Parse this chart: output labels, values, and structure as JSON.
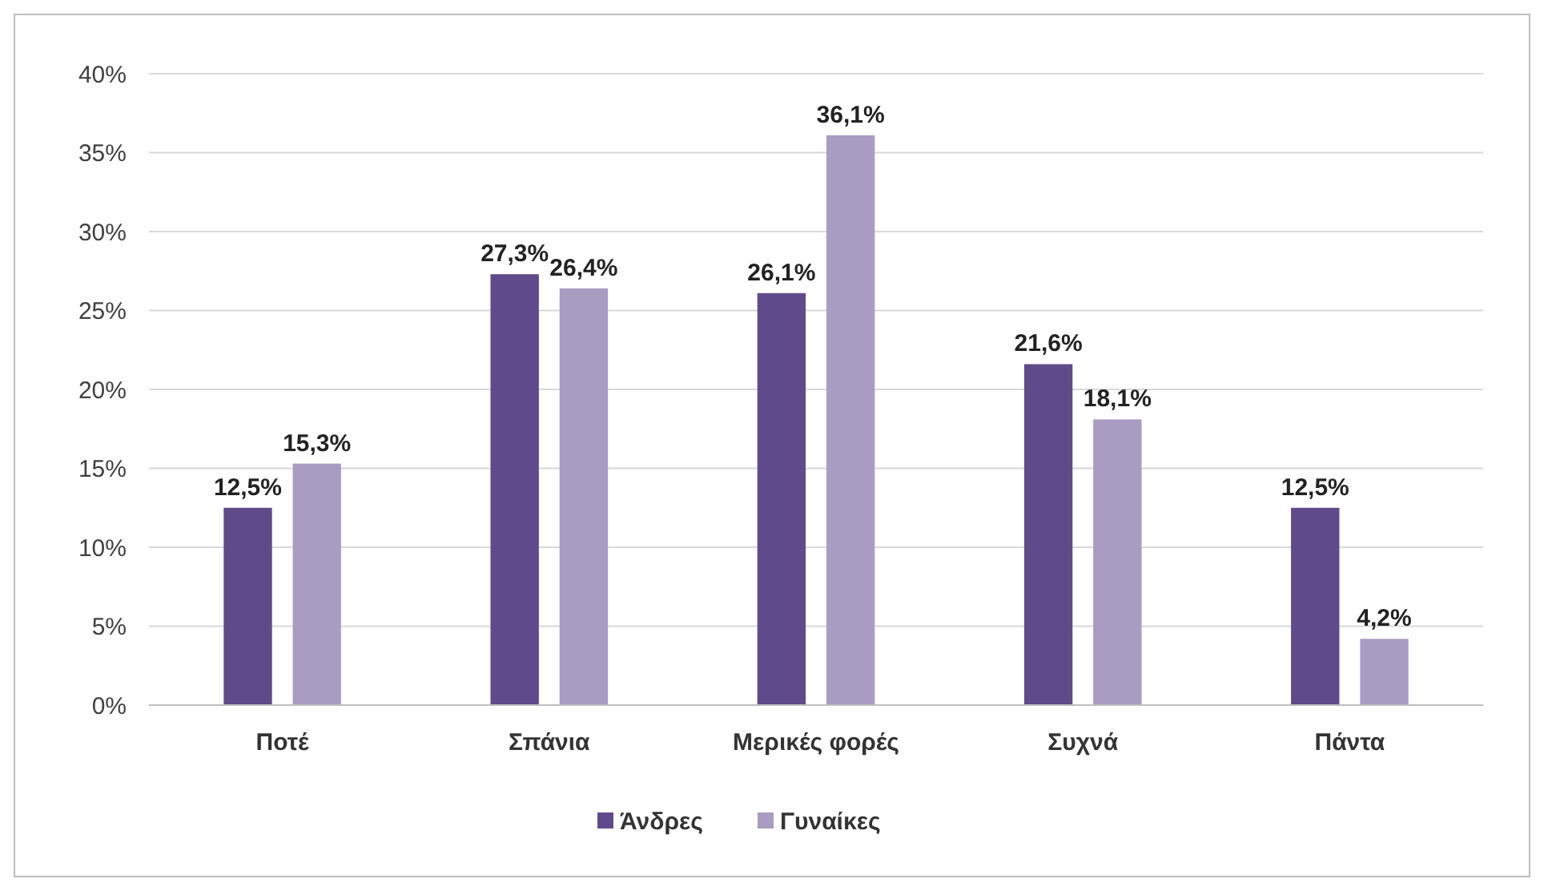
{
  "chart_data": {
    "type": "bar",
    "categories": [
      "Ποτέ",
      "Σπάνια",
      "Μερικές φορές",
      "Συχνά",
      "Πάντα"
    ],
    "series": [
      {
        "name": "Άνδρες",
        "color": "#5f4b8b",
        "values": [
          12.5,
          27.3,
          26.1,
          21.6,
          12.5
        ],
        "value_labels": [
          "12,5%",
          "27,3%",
          "26,1%",
          "21,6%",
          "12,5%"
        ]
      },
      {
        "name": "Γυναίκες",
        "color": "#a99cc2",
        "values": [
          15.3,
          26.4,
          36.1,
          18.1,
          4.2
        ],
        "value_labels": [
          "15,3%",
          "26,4%",
          "36,1%",
          "18,1%",
          "4,2%"
        ]
      }
    ],
    "ylim": [
      0,
      40
    ],
    "yticks": [
      {
        "value": 0,
        "label": "0%"
      },
      {
        "value": 5,
        "label": "5%"
      },
      {
        "value": 10,
        "label": "10%"
      },
      {
        "value": 15,
        "label": "15%"
      },
      {
        "value": 20,
        "label": "20%"
      },
      {
        "value": 25,
        "label": "25%"
      },
      {
        "value": 30,
        "label": "30%"
      },
      {
        "value": 35,
        "label": "35%"
      },
      {
        "value": 40,
        "label": "40%"
      }
    ],
    "grid": "y",
    "legend": "bottom"
  }
}
